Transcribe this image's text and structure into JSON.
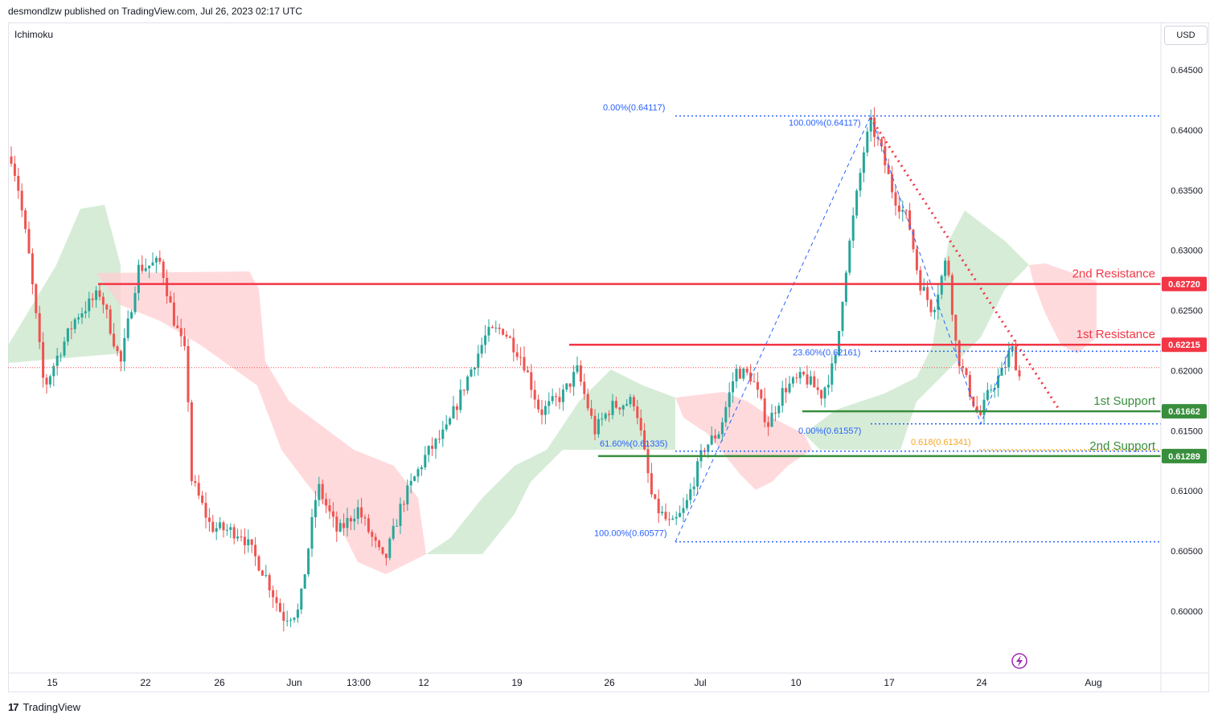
{
  "header": {
    "publisher": "desmondlzw published on TradingView.com, Jul 26, 2023 02:17 UTC"
  },
  "indicator": {
    "name": "Ichimoku"
  },
  "currency": {
    "label": "USD"
  },
  "footer": {
    "brand": "TradingView"
  },
  "colors": {
    "up": "#26a69a",
    "down": "#ef5350",
    "resistance": "#f23645",
    "support": "#388e3c",
    "fib": "#2962ff",
    "fib_gold": "#f5a623",
    "cloud_green": "#c8e6c9",
    "cloud_red": "#ffcdd2"
  },
  "chart_data": {
    "type": "candlestick",
    "y_ticks": [
      "0.64500",
      "0.64000",
      "0.63500",
      "0.63000",
      "0.62500",
      "0.62000",
      "0.61500",
      "0.61000",
      "0.60500",
      "0.60000"
    ],
    "x_ticks": [
      "15",
      "22",
      "26",
      "Jun",
      "13:00",
      "12",
      "19",
      "26",
      "Jul",
      "10",
      "17",
      "24",
      "Aug"
    ],
    "ylim": [
      0.597,
      0.6495
    ],
    "levels": [
      {
        "name": "2nd Resistance",
        "value": "0.62720",
        "type": "resistance"
      },
      {
        "name": "1st Resistance",
        "value": "0.62215",
        "type": "resistance"
      },
      {
        "name": "1st Support",
        "value": "0.61662",
        "type": "support"
      },
      {
        "name": "2nd Support",
        "value": "0.61289",
        "type": "support"
      }
    ],
    "fib_labels": [
      {
        "text": "0.00%(0.64117)"
      },
      {
        "text": "100.00%(0.64117)"
      },
      {
        "text": "23.60%(0.62161)"
      },
      {
        "text": "0.00%(0.61557)"
      },
      {
        "text": "61.60%(0.61335)"
      },
      {
        "text": "0.618(0.61341)"
      },
      {
        "text": "100.00%(0.60577)"
      }
    ]
  }
}
